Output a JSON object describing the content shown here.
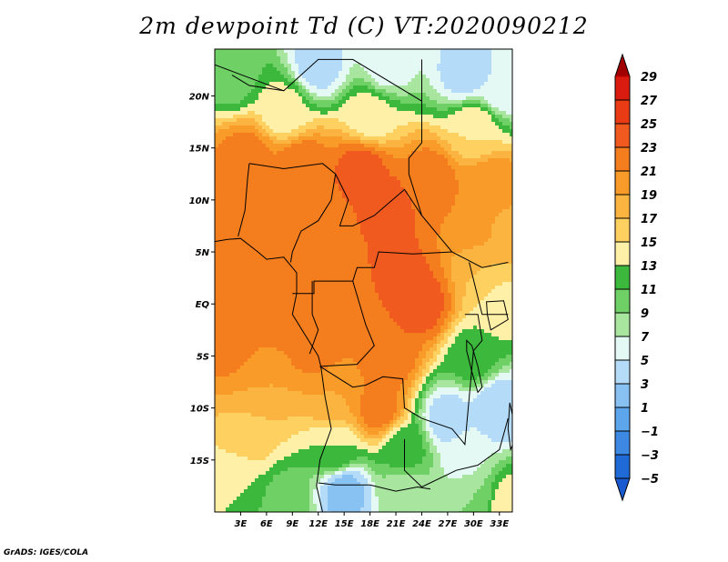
{
  "title": "2m dewpoint Td (C) VT:2020090212",
  "credit": "GrADS: IGES/COLA",
  "map": {
    "variable": "2m dewpoint",
    "units": "C",
    "valid_time": "2020090212",
    "lon_range": [
      0,
      34.5
    ],
    "lat_range": [
      -20,
      24.5
    ],
    "lat_ticks": [
      {
        "value": 20,
        "label": "20N"
      },
      {
        "value": 15,
        "label": "15N"
      },
      {
        "value": 10,
        "label": "10N"
      },
      {
        "value": 5,
        "label": "5N"
      },
      {
        "value": 0,
        "label": "EQ"
      },
      {
        "value": -5,
        "label": "5S"
      },
      {
        "value": -10,
        "label": "10S"
      },
      {
        "value": -15,
        "label": "15S"
      }
    ],
    "lon_ticks": [
      {
        "value": 3,
        "label": "3E"
      },
      {
        "value": 6,
        "label": "6E"
      },
      {
        "value": 9,
        "label": "9E"
      },
      {
        "value": 12,
        "label": "12E"
      },
      {
        "value": 15,
        "label": "15E"
      },
      {
        "value": 18,
        "label": "18E"
      },
      {
        "value": 21,
        "label": "21E"
      },
      {
        "value": 24,
        "label": "24E"
      },
      {
        "value": 27,
        "label": "27E"
      },
      {
        "value": 30,
        "label": "30E"
      },
      {
        "value": 33,
        "label": "33E"
      }
    ],
    "field_samples": [
      {
        "lon": 2,
        "lat": 22,
        "td": 10
      },
      {
        "lon": 12,
        "lat": 23,
        "td": 4
      },
      {
        "lon": 20,
        "lat": 23,
        "td": 6
      },
      {
        "lon": 29,
        "lat": 22,
        "td": 4
      },
      {
        "lon": 33,
        "lat": 21,
        "td": 5
      },
      {
        "lon": 8,
        "lat": 18.5,
        "td": 14
      },
      {
        "lon": 18,
        "lat": 18,
        "td": 14
      },
      {
        "lon": 30,
        "lat": 17,
        "td": 15
      },
      {
        "lon": 4,
        "lat": 14,
        "td": 22
      },
      {
        "lon": 10,
        "lat": 13,
        "td": 23
      },
      {
        "lon": 17,
        "lat": 13,
        "td": 24
      },
      {
        "lon": 25,
        "lat": 12,
        "td": 22
      },
      {
        "lon": 32,
        "lat": 11,
        "td": 21
      },
      {
        "lon": 2,
        "lat": 10,
        "td": 23
      },
      {
        "lon": 8,
        "lat": 10,
        "td": 21
      },
      {
        "lon": 20,
        "lat": 9,
        "td": 24
      },
      {
        "lon": 30,
        "lat": 8,
        "td": 21
      },
      {
        "lon": 34,
        "lat": 7,
        "td": 18
      },
      {
        "lon": 12,
        "lat": 6,
        "td": 21
      },
      {
        "lon": 2,
        "lat": 4,
        "td": 23
      },
      {
        "lon": 21,
        "lat": 3,
        "td": 24
      },
      {
        "lon": 31,
        "lat": 3,
        "td": 17
      },
      {
        "lon": 7,
        "lat": 0,
        "td": 23
      },
      {
        "lon": 15,
        "lat": 1,
        "td": 21
      },
      {
        "lon": 24,
        "lat": 0,
        "td": 24
      },
      {
        "lon": 33,
        "lat": 0,
        "td": 14
      },
      {
        "lon": 2,
        "lat": -4,
        "td": 22
      },
      {
        "lon": 12,
        "lat": -4,
        "td": 22
      },
      {
        "lon": 20,
        "lat": -5,
        "td": 23
      },
      {
        "lon": 30,
        "lat": -5,
        "td": 12
      },
      {
        "lon": 5,
        "lat": -8,
        "td": 19
      },
      {
        "lon": 14,
        "lat": -9,
        "td": 19
      },
      {
        "lon": 19,
        "lat": -10,
        "td": 22
      },
      {
        "lon": 27,
        "lat": -11,
        "td": 4
      },
      {
        "lon": 33,
        "lat": -10,
        "td": 3
      },
      {
        "lon": 4,
        "lat": -13,
        "td": 16
      },
      {
        "lon": 14,
        "lat": -14,
        "td": 13
      },
      {
        "lon": 22,
        "lat": -14,
        "td": 12
      },
      {
        "lon": 29,
        "lat": -15,
        "td": 6
      },
      {
        "lon": 3,
        "lat": -17,
        "td": 13
      },
      {
        "lon": 8,
        "lat": -19,
        "td": 10
      },
      {
        "lon": 15,
        "lat": -18,
        "td": 2
      },
      {
        "lon": 22,
        "lat": -18,
        "td": 8
      },
      {
        "lon": 30,
        "lat": -18,
        "td": 9
      },
      {
        "lon": 34,
        "lat": -19,
        "td": 14
      }
    ]
  },
  "colorbar": {
    "levels": [
      {
        "label": "29",
        "color": "#c00000"
      },
      {
        "label": "27",
        "color": "#d91b10"
      },
      {
        "label": "25",
        "color": "#ea3c14"
      },
      {
        "label": "23",
        "color": "#f05a1e"
      },
      {
        "label": "21",
        "color": "#f47d1e"
      },
      {
        "label": "19",
        "color": "#f89b28"
      },
      {
        "label": "17",
        "color": "#fbb440"
      },
      {
        "label": "15",
        "color": "#fdd060"
      },
      {
        "label": "13",
        "color": "#fff0a8"
      },
      {
        "label": "11",
        "color": "#3cb83c"
      },
      {
        "label": "9",
        "color": "#6fd065"
      },
      {
        "label": "7",
        "color": "#a8e6a0"
      },
      {
        "label": "5",
        "color": "#e4f8f4"
      },
      {
        "label": "3",
        "color": "#b4dcf8"
      },
      {
        "label": "1",
        "color": "#88c2f2"
      },
      {
        "label": "−1",
        "color": "#5ea6ec"
      },
      {
        "label": "−3",
        "color": "#3c88e2"
      },
      {
        "label": "−5",
        "color": "#1f6ad6"
      }
    ],
    "top_color": "#a00000",
    "bottom_color": "#1a5ad0"
  }
}
